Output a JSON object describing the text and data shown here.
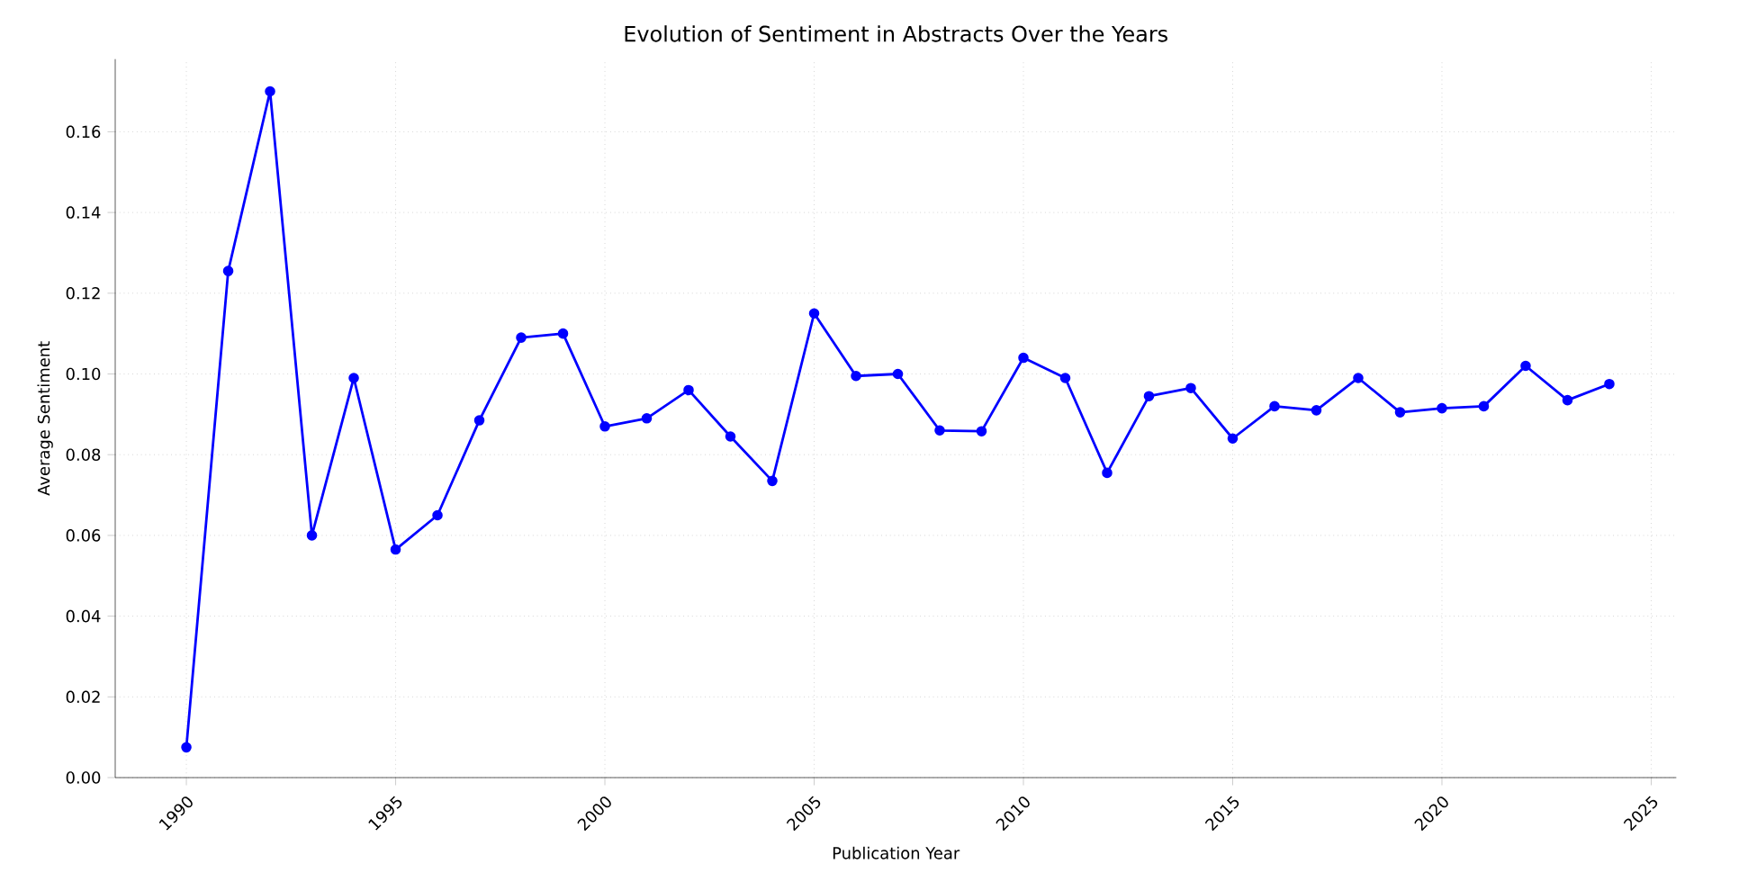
{
  "chart_data": {
    "type": "line",
    "title": "Evolution of Sentiment in Abstracts Over the Years",
    "xlabel": "Publication Year",
    "ylabel": "Average Sentiment",
    "x": [
      1990,
      1991,
      1992,
      1993,
      1994,
      1995,
      1996,
      1997,
      1998,
      1999,
      2000,
      2001,
      2002,
      2003,
      2004,
      2005,
      2006,
      2007,
      2008,
      2009,
      2010,
      2011,
      2012,
      2013,
      2014,
      2015,
      2016,
      2017,
      2018,
      2019,
      2020,
      2021,
      2022,
      2023,
      2024
    ],
    "series": [
      {
        "color": "#0000ff",
        "values": [
          0.0075,
          0.1255,
          0.17,
          0.06,
          0.099,
          0.0565,
          0.065,
          0.0885,
          0.109,
          0.11,
          0.087,
          0.089,
          0.096,
          0.0845,
          0.0735,
          0.115,
          0.0995,
          0.1,
          0.086,
          0.0858,
          0.104,
          0.099,
          0.0755,
          0.0945,
          0.0965,
          0.084,
          0.092,
          0.091,
          0.099,
          0.0905,
          0.0915,
          0.092,
          0.102,
          0.0935,
          0.0975
        ]
      }
    ],
    "xlim": [
      1988.3,
      2025.6
    ],
    "ylim": [
      0,
      0.178
    ],
    "xticks": [
      1990,
      1995,
      2000,
      2005,
      2010,
      2015,
      2020,
      2025
    ],
    "yticks": [
      {
        "value": 0,
        "label": "0.00"
      },
      {
        "value": 0.02,
        "label": "0.02"
      },
      {
        "value": 0.04,
        "label": "0.04"
      },
      {
        "value": 0.06,
        "label": "0.06"
      },
      {
        "value": 0.08,
        "label": "0.08"
      },
      {
        "value": 0.1,
        "label": "0.10"
      },
      {
        "value": 0.12,
        "label": "0.12"
      },
      {
        "value": 0.14,
        "label": "0.14"
      },
      {
        "value": 0.16,
        "label": "0.16"
      }
    ],
    "grid": true,
    "marker": "circle",
    "line_style": "solid"
  }
}
